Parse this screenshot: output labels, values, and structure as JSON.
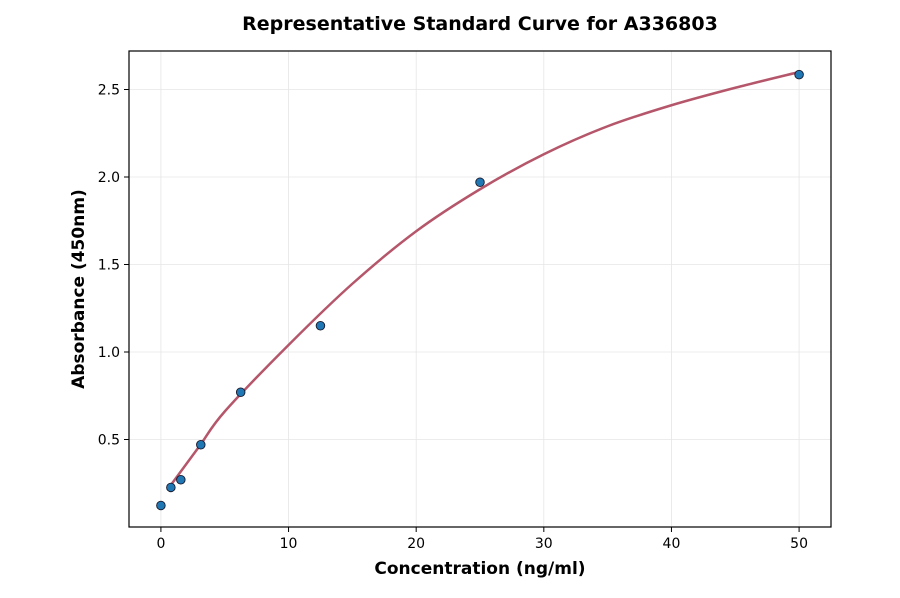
{
  "chart_data": {
    "type": "scatter",
    "title": "Representative Standard Curve for A336803",
    "xlabel": "Concentration (ng/ml)",
    "ylabel": "Absorbance (450nm)",
    "xlim": [
      -2.5,
      52.5
    ],
    "ylim": [
      0.0,
      2.72
    ],
    "xticks": [
      0,
      10,
      20,
      30,
      40,
      50
    ],
    "yticks": [
      0.5,
      1.0,
      1.5,
      2.0,
      2.5
    ],
    "xtick_labels": [
      "0",
      "10",
      "20",
      "30",
      "40",
      "50"
    ],
    "ytick_labels": [
      "0.5",
      "1.0",
      "1.5",
      "2.0",
      "2.5"
    ],
    "grid": true,
    "series": [
      {
        "type": "scatter",
        "x": [
          0,
          0.78,
          1.56,
          3.125,
          6.25,
          12.5,
          25,
          50
        ],
        "y": [
          0.123,
          0.226,
          0.27,
          0.47,
          0.77,
          1.15,
          1.97,
          2.585
        ],
        "color": "#1f77b4"
      },
      {
        "type": "line",
        "x": [
          0.78,
          3,
          5,
          10,
          15,
          20,
          25,
          30,
          35,
          40,
          45,
          50
        ],
        "y": [
          0.24,
          0.46,
          0.66,
          1.04,
          1.39,
          1.69,
          1.93,
          2.13,
          2.29,
          2.41,
          2.51,
          2.6
        ],
        "color": "#b5566a"
      }
    ]
  }
}
